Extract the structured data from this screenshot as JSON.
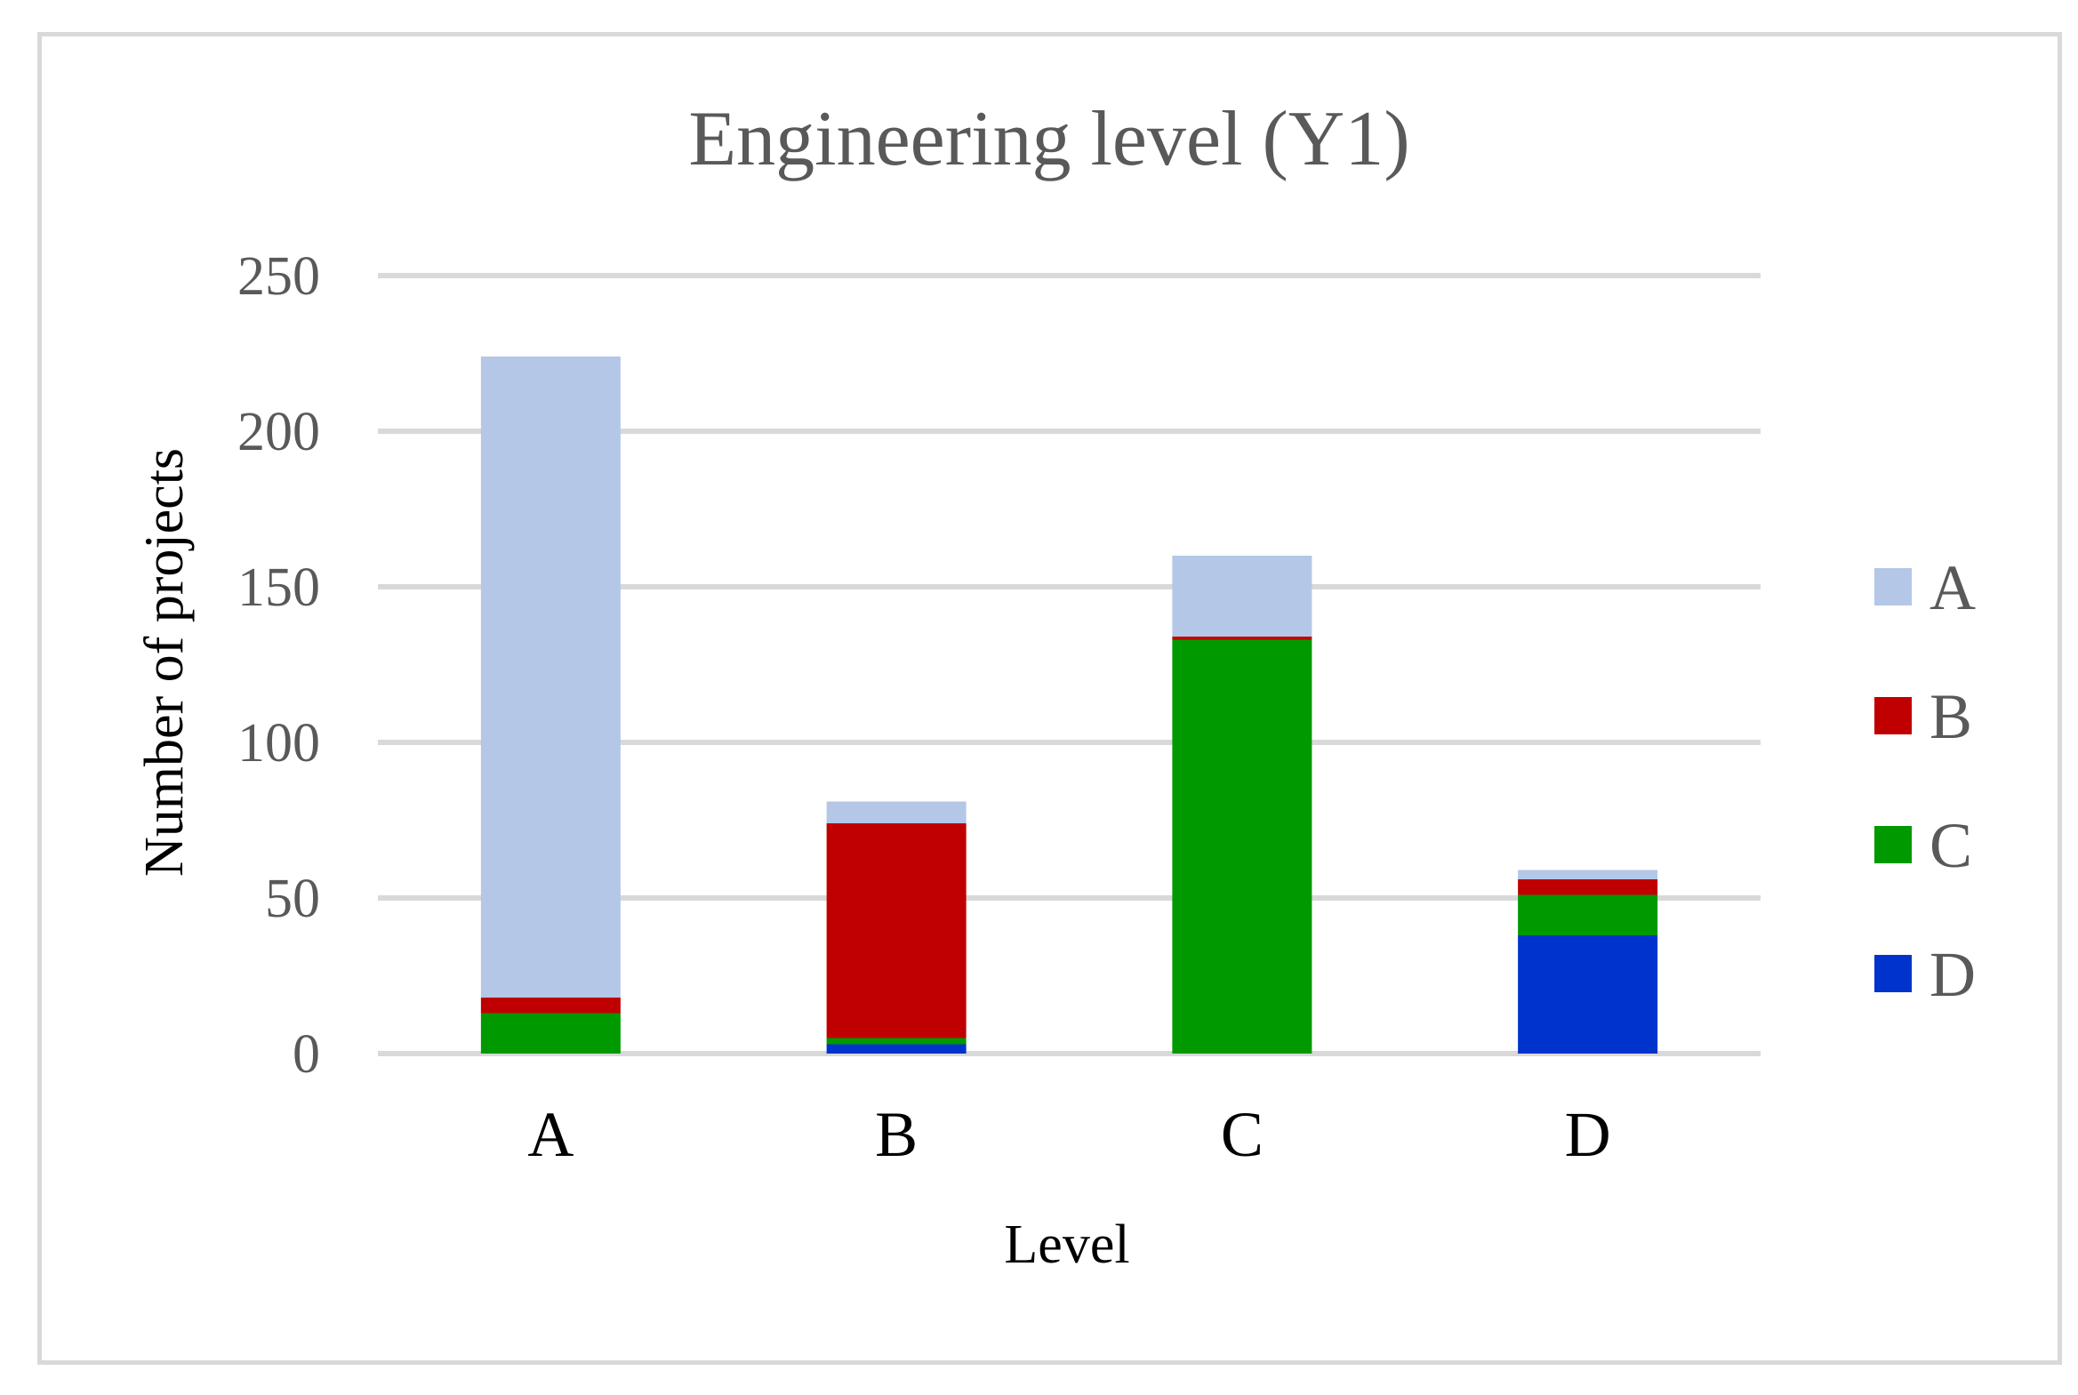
{
  "chart_data": {
    "type": "stacked-bar",
    "title": "Engineering level (Y1)",
    "xlabel": "Level",
    "ylabel": "Number of projects",
    "ylim": [
      0,
      250
    ],
    "yticks": [
      0,
      50,
      100,
      150,
      200,
      250
    ],
    "categories": [
      "A",
      "B",
      "C",
      "D"
    ],
    "series": [
      {
        "name": "D",
        "color": "#0033cc",
        "values": [
          0,
          3,
          0,
          38
        ]
      },
      {
        "name": "C",
        "color": "#009900",
        "values": [
          13,
          2,
          133,
          13
        ]
      },
      {
        "name": "B",
        "color": "#c00000",
        "values": [
          5,
          69,
          1,
          5
        ]
      },
      {
        "name": "A",
        "color": "#b4c7e7",
        "values": [
          206,
          7,
          26,
          3
        ]
      }
    ],
    "legend": {
      "position": "right",
      "entries": [
        "A",
        "B",
        "C",
        "D"
      ]
    },
    "grid": true
  }
}
